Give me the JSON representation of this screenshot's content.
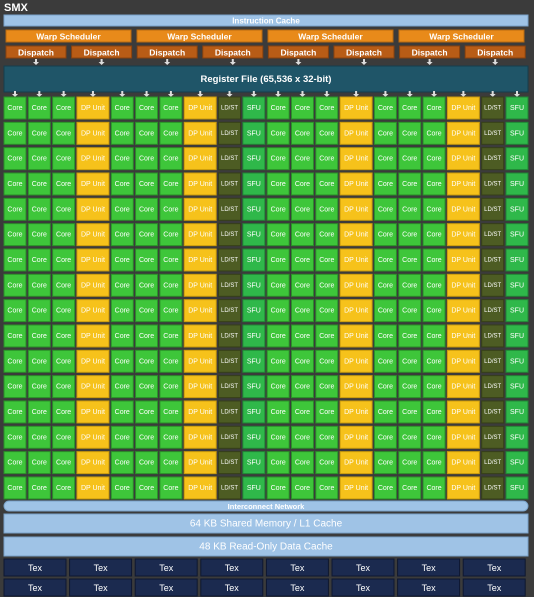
{
  "title": "SMX",
  "instruction_cache": "Instruction Cache",
  "warp_schedulers": [
    "Warp Scheduler",
    "Warp Scheduler",
    "Warp Scheduler",
    "Warp Scheduler"
  ],
  "dispatch": [
    "Dispatch",
    "Dispatch",
    "Dispatch",
    "Dispatch",
    "Dispatch",
    "Dispatch",
    "Dispatch",
    "Dispatch"
  ],
  "register_file": "Register File (65,536 x 32-bit)",
  "units": [
    [
      "Core",
      "Core",
      "Core",
      "DP Unit",
      "Core",
      "Core",
      "Core",
      "DP Unit",
      "LD/ST",
      "SFU",
      "Core",
      "Core",
      "Core",
      "DP Unit",
      "Core",
      "Core",
      "Core",
      "DP Unit",
      "LD/ST",
      "SFU"
    ],
    [
      "Core",
      "Core",
      "Core",
      "DP Unit",
      "Core",
      "Core",
      "Core",
      "DP Unit",
      "LD/ST",
      "SFU",
      "Core",
      "Core",
      "Core",
      "DP Unit",
      "Core",
      "Core",
      "Core",
      "DP Unit",
      "LD/ST",
      "SFU"
    ],
    [
      "Core",
      "Core",
      "Core",
      "DP Unit",
      "Core",
      "Core",
      "Core",
      "DP Unit",
      "LD/ST",
      "SFU",
      "Core",
      "Core",
      "Core",
      "DP Unit",
      "Core",
      "Core",
      "Core",
      "DP Unit",
      "LD/ST",
      "SFU"
    ],
    [
      "Core",
      "Core",
      "Core",
      "DP Unit",
      "Core",
      "Core",
      "Core",
      "DP Unit",
      "LD/ST",
      "SFU",
      "Core",
      "Core",
      "Core",
      "DP Unit",
      "Core",
      "Core",
      "Core",
      "DP Unit",
      "LD/ST",
      "SFU"
    ],
    [
      "Core",
      "Core",
      "Core",
      "DP Unit",
      "Core",
      "Core",
      "Core",
      "DP Unit",
      "LD/ST",
      "SFU",
      "Core",
      "Core",
      "Core",
      "DP Unit",
      "Core",
      "Core",
      "Core",
      "DP Unit",
      "LD/ST",
      "SFU"
    ],
    [
      "Core",
      "Core",
      "Core",
      "DP Unit",
      "Core",
      "Core",
      "Core",
      "DP Unit",
      "LD/ST",
      "SFU",
      "Core",
      "Core",
      "Core",
      "DP Unit",
      "Core",
      "Core",
      "Core",
      "DP Unit",
      "LD/ST",
      "SFU"
    ],
    [
      "Core",
      "Core",
      "Core",
      "DP Unit",
      "Core",
      "Core",
      "Core",
      "DP Unit",
      "LD/ST",
      "SFU",
      "Core",
      "Core",
      "Core",
      "DP Unit",
      "Core",
      "Core",
      "Core",
      "DP Unit",
      "LD/ST",
      "SFU"
    ],
    [
      "Core",
      "Core",
      "Core",
      "DP Unit",
      "Core",
      "Core",
      "Core",
      "DP Unit",
      "LD/ST",
      "SFU",
      "Core",
      "Core",
      "Core",
      "DP Unit",
      "Core",
      "Core",
      "Core",
      "DP Unit",
      "LD/ST",
      "SFU"
    ],
    [
      "Core",
      "Core",
      "Core",
      "DP Unit",
      "Core",
      "Core",
      "Core",
      "DP Unit",
      "LD/ST",
      "SFU",
      "Core",
      "Core",
      "Core",
      "DP Unit",
      "Core",
      "Core",
      "Core",
      "DP Unit",
      "LD/ST",
      "SFU"
    ],
    [
      "Core",
      "Core",
      "Core",
      "DP Unit",
      "Core",
      "Core",
      "Core",
      "DP Unit",
      "LD/ST",
      "SFU",
      "Core",
      "Core",
      "Core",
      "DP Unit",
      "Core",
      "Core",
      "Core",
      "DP Unit",
      "LD/ST",
      "SFU"
    ],
    [
      "Core",
      "Core",
      "Core",
      "DP Unit",
      "Core",
      "Core",
      "Core",
      "DP Unit",
      "LD/ST",
      "SFU",
      "Core",
      "Core",
      "Core",
      "DP Unit",
      "Core",
      "Core",
      "Core",
      "DP Unit",
      "LD/ST",
      "SFU"
    ],
    [
      "Core",
      "Core",
      "Core",
      "DP Unit",
      "Core",
      "Core",
      "Core",
      "DP Unit",
      "LD/ST",
      "SFU",
      "Core",
      "Core",
      "Core",
      "DP Unit",
      "Core",
      "Core",
      "Core",
      "DP Unit",
      "LD/ST",
      "SFU"
    ],
    [
      "Core",
      "Core",
      "Core",
      "DP Unit",
      "Core",
      "Core",
      "Core",
      "DP Unit",
      "LD/ST",
      "SFU",
      "Core",
      "Core",
      "Core",
      "DP Unit",
      "Core",
      "Core",
      "Core",
      "DP Unit",
      "LD/ST",
      "SFU"
    ],
    [
      "Core",
      "Core",
      "Core",
      "DP Unit",
      "Core",
      "Core",
      "Core",
      "DP Unit",
      "LD/ST",
      "SFU",
      "Core",
      "Core",
      "Core",
      "DP Unit",
      "Core",
      "Core",
      "Core",
      "DP Unit",
      "LD/ST",
      "SFU"
    ],
    [
      "Core",
      "Core",
      "Core",
      "DP Unit",
      "Core",
      "Core",
      "Core",
      "DP Unit",
      "LD/ST",
      "SFU",
      "Core",
      "Core",
      "Core",
      "DP Unit",
      "Core",
      "Core",
      "Core",
      "DP Unit",
      "LD/ST",
      "SFU"
    ],
    [
      "Core",
      "Core",
      "Core",
      "DP Unit",
      "Core",
      "Core",
      "Core",
      "DP Unit",
      "LD/ST",
      "SFU",
      "Core",
      "Core",
      "Core",
      "DP Unit",
      "Core",
      "Core",
      "Core",
      "DP Unit",
      "LD/ST",
      "SFU"
    ]
  ],
  "interconnect": "Interconnect Network",
  "shared_memory": "64 KB Shared Memory / L1 Cache",
  "read_only_cache": "48 KB Read-Only Data Cache",
  "tex": [
    [
      "Tex",
      "Tex",
      "Tex",
      "Tex",
      "Tex",
      "Tex",
      "Tex",
      "Tex"
    ],
    [
      "Tex",
      "Tex",
      "Tex",
      "Tex",
      "Tex",
      "Tex",
      "Tex",
      "Tex"
    ]
  ]
}
